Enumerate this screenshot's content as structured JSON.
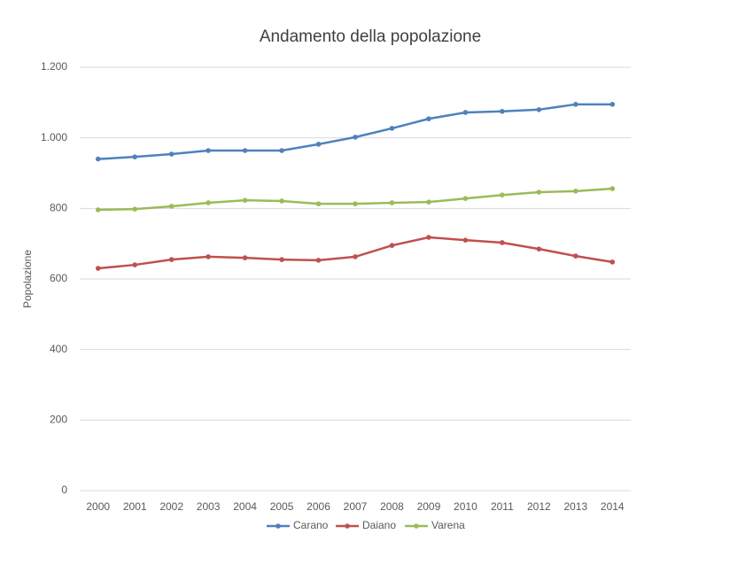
{
  "chart_data": {
    "type": "line",
    "title": "Andamento della popolazione",
    "y_label": "Popolazione",
    "categories": [
      "2000",
      "2001",
      "2002",
      "2003",
      "2004",
      "2005",
      "2006",
      "2007",
      "2008",
      "2009",
      "2010",
      "2011",
      "2012",
      "2013",
      "2014"
    ],
    "series": [
      {
        "name": "Carano",
        "color": "#4f81bd",
        "values": [
          940,
          946,
          954,
          964,
          964,
          964,
          982,
          1002,
          1027,
          1054,
          1072,
          1075,
          1080,
          1095,
          1095
        ]
      },
      {
        "name": "Daiano",
        "color": "#c0504d",
        "values": [
          630,
          640,
          655,
          663,
          660,
          655,
          653,
          663,
          695,
          718,
          710,
          703,
          685,
          665,
          648
        ]
      },
      {
        "name": "Varena",
        "color": "#9bbb59",
        "values": [
          796,
          798,
          806,
          816,
          823,
          821,
          813,
          813,
          816,
          818,
          828,
          838,
          846,
          849,
          856
        ]
      }
    ],
    "ylim": [
      0,
      1200
    ],
    "yticks": [
      0,
      200,
      400,
      600,
      800,
      {
        "value": 1000,
        "label": "1.000"
      },
      {
        "value": 1200,
        "label": "1.200"
      }
    ],
    "grid": true,
    "legend": "bottom"
  }
}
